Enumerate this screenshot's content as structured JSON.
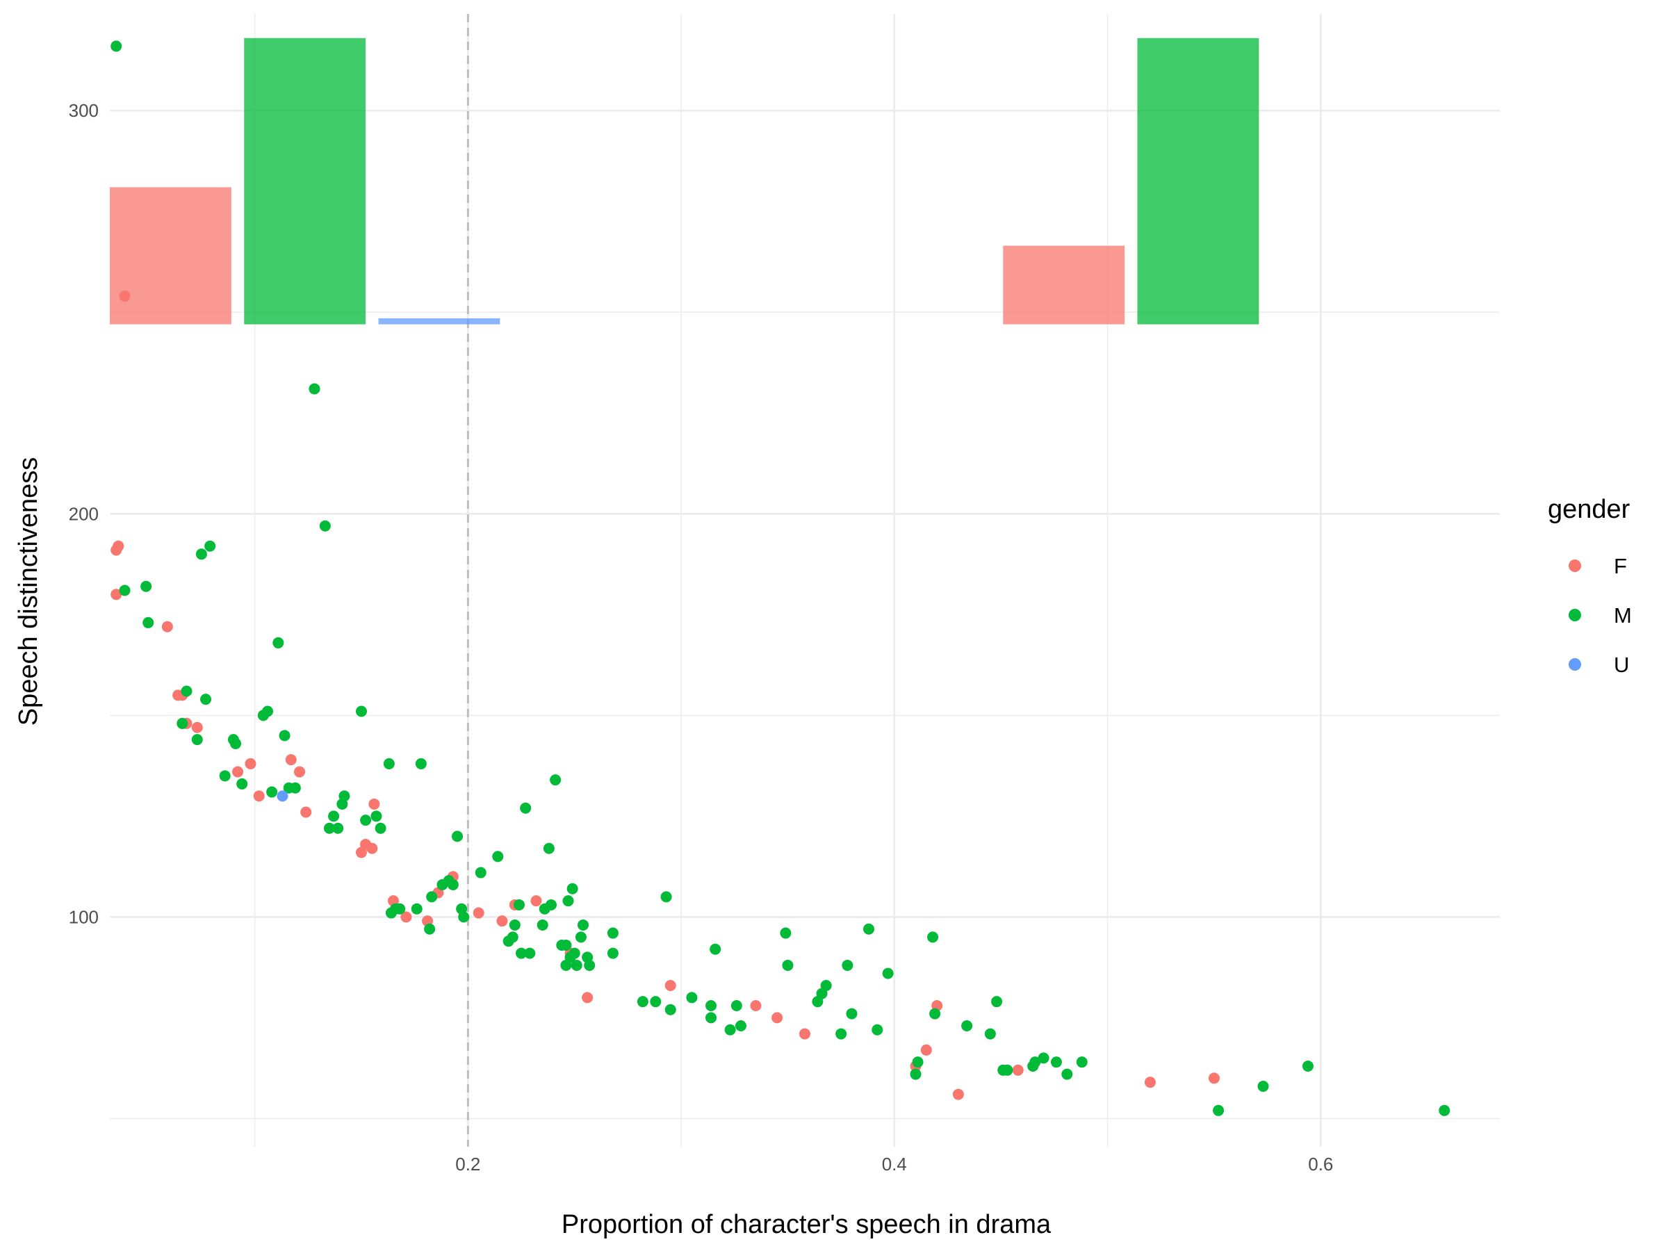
{
  "chart_data": {
    "type": "scatter",
    "xlabel": "Proportion of character's speech in drama",
    "ylabel": "Speech distinctiveness",
    "x_ticks": [
      {
        "value": 0.2,
        "label": "0.2"
      },
      {
        "value": 0.4,
        "label": "0.4"
      },
      {
        "value": 0.6,
        "label": "0.6"
      }
    ],
    "y_ticks": [
      {
        "value": 100,
        "label": "100"
      },
      {
        "value": 200,
        "label": "200"
      },
      {
        "value": 300,
        "label": "300"
      }
    ],
    "xlim": [
      0.032,
      0.684
    ],
    "ylim": [
      43,
      324
    ],
    "grid": true,
    "reference_line": {
      "x": 0.2,
      "style": "dashed",
      "color": "#bdbdbd"
    },
    "legend": {
      "title": "gender",
      "position": "right",
      "entries": [
        {
          "label": "F",
          "color": "#F8766D"
        },
        {
          "label": "M",
          "color": "#00BA38"
        },
        {
          "label": "U",
          "color": "#619CFF"
        }
      ]
    },
    "inset_bars": [
      {
        "group": "F",
        "x_start": 0.032,
        "x_end": 0.089,
        "y_bottom": 247,
        "y_top": 281,
        "color": "#F8766D"
      },
      {
        "group": "M",
        "x_start": 0.095,
        "x_end": 0.152,
        "y_bottom": 247,
        "y_top": 318,
        "color": "#00BA38"
      },
      {
        "group": "U",
        "x_start": 0.158,
        "x_end": 0.215,
        "y_bottom": 247,
        "y_top": 248.5,
        "color": "#619CFF"
      },
      {
        "group": "F",
        "x_start": 0.451,
        "x_end": 0.508,
        "y_bottom": 247,
        "y_top": 266.5,
        "color": "#F8766D"
      },
      {
        "group": "M",
        "x_start": 0.514,
        "x_end": 0.571,
        "y_bottom": 247,
        "y_top": 318,
        "color": "#00BA38"
      }
    ],
    "series": [
      {
        "name": "F",
        "color": "#F8766D",
        "points": [
          [
            0.035,
            191
          ],
          [
            0.036,
            192
          ],
          [
            0.035,
            180
          ],
          [
            0.039,
            254
          ],
          [
            0.059,
            172
          ],
          [
            0.064,
            155
          ],
          [
            0.066,
            155
          ],
          [
            0.068,
            148
          ],
          [
            0.073,
            147
          ],
          [
            0.092,
            136
          ],
          [
            0.098,
            138
          ],
          [
            0.102,
            130
          ],
          [
            0.117,
            139
          ],
          [
            0.121,
            136
          ],
          [
            0.124,
            126
          ],
          [
            0.15,
            116
          ],
          [
            0.152,
            118
          ],
          [
            0.155,
            117
          ],
          [
            0.156,
            128
          ],
          [
            0.165,
            104
          ],
          [
            0.171,
            100
          ],
          [
            0.181,
            99
          ],
          [
            0.186,
            106
          ],
          [
            0.193,
            110
          ],
          [
            0.205,
            101
          ],
          [
            0.216,
            99
          ],
          [
            0.222,
            103
          ],
          [
            0.232,
            104
          ],
          [
            0.248,
            91
          ],
          [
            0.256,
            80
          ],
          [
            0.295,
            83
          ],
          [
            0.335,
            78
          ],
          [
            0.345,
            75
          ],
          [
            0.358,
            71
          ],
          [
            0.41,
            63
          ],
          [
            0.415,
            67
          ],
          [
            0.42,
            78
          ],
          [
            0.43,
            56
          ],
          [
            0.458,
            62
          ],
          [
            0.52,
            59
          ],
          [
            0.55,
            60
          ]
        ]
      },
      {
        "name": "M",
        "color": "#00BA38",
        "points": [
          [
            0.035,
            316
          ],
          [
            0.039,
            181
          ],
          [
            0.049,
            182
          ],
          [
            0.05,
            173
          ],
          [
            0.066,
            148
          ],
          [
            0.068,
            156
          ],
          [
            0.073,
            144
          ],
          [
            0.075,
            190
          ],
          [
            0.077,
            154
          ],
          [
            0.079,
            192
          ],
          [
            0.086,
            135
          ],
          [
            0.09,
            144
          ],
          [
            0.091,
            143
          ],
          [
            0.094,
            133
          ],
          [
            0.104,
            150
          ],
          [
            0.106,
            151
          ],
          [
            0.108,
            131
          ],
          [
            0.111,
            168
          ],
          [
            0.114,
            145
          ],
          [
            0.116,
            132
          ],
          [
            0.119,
            132
          ],
          [
            0.128,
            231
          ],
          [
            0.133,
            197
          ],
          [
            0.135,
            122
          ],
          [
            0.137,
            125
          ],
          [
            0.139,
            122
          ],
          [
            0.141,
            128
          ],
          [
            0.142,
            130
          ],
          [
            0.15,
            151
          ],
          [
            0.152,
            124
          ],
          [
            0.157,
            125
          ],
          [
            0.159,
            122
          ],
          [
            0.163,
            138
          ],
          [
            0.164,
            101
          ],
          [
            0.166,
            102
          ],
          [
            0.168,
            102
          ],
          [
            0.176,
            102
          ],
          [
            0.178,
            138
          ],
          [
            0.182,
            97
          ],
          [
            0.183,
            105
          ],
          [
            0.188,
            108
          ],
          [
            0.191,
            109
          ],
          [
            0.193,
            108
          ],
          [
            0.195,
            120
          ],
          [
            0.197,
            102
          ],
          [
            0.198,
            100
          ],
          [
            0.206,
            111
          ],
          [
            0.214,
            115
          ],
          [
            0.219,
            94
          ],
          [
            0.221,
            95
          ],
          [
            0.222,
            98
          ],
          [
            0.224,
            103
          ],
          [
            0.225,
            91
          ],
          [
            0.227,
            127
          ],
          [
            0.229,
            91
          ],
          [
            0.235,
            98
          ],
          [
            0.236,
            102
          ],
          [
            0.238,
            117
          ],
          [
            0.239,
            103
          ],
          [
            0.241,
            134
          ],
          [
            0.244,
            93
          ],
          [
            0.246,
            88
          ],
          [
            0.246,
            93
          ],
          [
            0.247,
            104
          ],
          [
            0.248,
            90
          ],
          [
            0.249,
            107
          ],
          [
            0.25,
            91
          ],
          [
            0.251,
            88
          ],
          [
            0.253,
            95
          ],
          [
            0.254,
            98
          ],
          [
            0.256,
            90
          ],
          [
            0.257,
            88
          ],
          [
            0.268,
            96
          ],
          [
            0.268,
            91
          ],
          [
            0.282,
            79
          ],
          [
            0.288,
            79
          ],
          [
            0.293,
            105
          ],
          [
            0.295,
            77
          ],
          [
            0.305,
            80
          ],
          [
            0.314,
            78
          ],
          [
            0.314,
            75
          ],
          [
            0.316,
            92
          ],
          [
            0.323,
            72
          ],
          [
            0.326,
            78
          ],
          [
            0.328,
            73
          ],
          [
            0.349,
            96
          ],
          [
            0.35,
            88
          ],
          [
            0.364,
            79
          ],
          [
            0.366,
            81
          ],
          [
            0.368,
            83
          ],
          [
            0.375,
            71
          ],
          [
            0.378,
            88
          ],
          [
            0.38,
            76
          ],
          [
            0.388,
            97
          ],
          [
            0.392,
            72
          ],
          [
            0.397,
            86
          ],
          [
            0.41,
            61
          ],
          [
            0.411,
            64
          ],
          [
            0.418,
            95
          ],
          [
            0.419,
            76
          ],
          [
            0.434,
            73
          ],
          [
            0.445,
            71
          ],
          [
            0.448,
            79
          ],
          [
            0.451,
            62
          ],
          [
            0.453,
            62
          ],
          [
            0.465,
            63
          ],
          [
            0.466,
            64
          ],
          [
            0.47,
            65
          ],
          [
            0.476,
            64
          ],
          [
            0.481,
            61
          ],
          [
            0.488,
            64
          ],
          [
            0.552,
            52
          ],
          [
            0.573,
            58
          ],
          [
            0.594,
            63
          ],
          [
            0.658,
            52
          ]
        ]
      },
      {
        "name": "U",
        "color": "#619CFF",
        "points": [
          [
            0.113,
            130
          ]
        ]
      }
    ]
  }
}
